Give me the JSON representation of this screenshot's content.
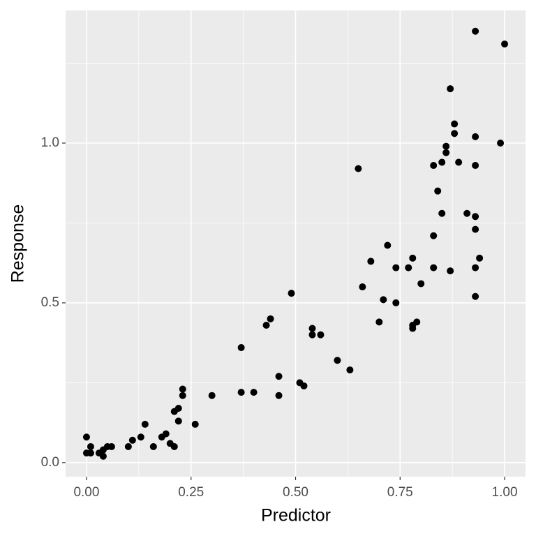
{
  "chart_data": {
    "type": "scatter",
    "x_label": "Predictor",
    "y_label": "Response",
    "x": [
      0,
      0,
      0.01,
      0.01,
      0.03,
      0.04,
      0.04,
      0.05,
      0.06,
      0.1,
      0.11,
      0.13,
      0.14,
      0.16,
      0.18,
      0.19,
      0.2,
      0.21,
      0.21,
      0.22,
      0.22,
      0.23,
      0.23,
      0.26,
      0.3,
      0.37,
      0.37,
      0.4,
      0.43,
      0.44,
      0.46,
      0.46,
      0.49,
      0.51,
      0.52,
      0.54,
      0.54,
      0.56,
      0.6,
      0.63,
      0.65,
      0.66,
      0.68,
      0.7,
      0.71,
      0.72,
      0.74,
      0.74,
      0.77,
      0.78,
      0.78,
      0.78,
      0.79,
      0.8,
      0.83,
      0.83,
      0.83,
      0.84,
      0.85,
      0.85,
      0.86,
      0.86,
      0.87,
      0.87,
      0.88,
      0.88,
      0.89,
      0.91,
      0.93,
      0.93,
      0.93,
      0.93,
      0.93,
      0.93,
      0.94,
      0.99,
      1.0,
      0.93
    ],
    "series": [
      {
        "color": "#000000",
        "values": [
          0.08,
          0.03,
          0.05,
          0.03,
          0.03,
          0.02,
          0.04,
          0.05,
          0.05,
          0.05,
          0.07,
          0.08,
          0.12,
          0.05,
          0.08,
          0.09,
          0.06,
          0.05,
          0.16,
          0.17,
          0.13,
          0.21,
          0.23,
          0.12,
          0.21,
          0.36,
          0.22,
          0.22,
          0.43,
          0.45,
          0.27,
          0.21,
          0.53,
          0.25,
          0.24,
          0.42,
          0.4,
          0.4,
          0.32,
          0.29,
          0.92,
          0.55,
          0.63,
          0.44,
          0.51,
          0.68,
          0.61,
          0.5,
          0.61,
          0.64,
          0.43,
          0.42,
          0.44,
          0.56,
          0.93,
          0.71,
          0.61,
          0.85,
          0.78,
          0.94,
          0.99,
          0.97,
          1.17,
          0.6,
          1.06,
          1.03,
          0.94,
          0.78,
          1.02,
          0.93,
          0.77,
          0.73,
          0.61,
          0.52,
          0.64,
          1.0,
          1.31,
          1.35
        ]
      }
    ],
    "xlim": [
      -0.05,
      1.05
    ],
    "ylim": [
      -0.044,
      1.415
    ],
    "xticks": [
      {
        "value": 0,
        "label": "0.00"
      },
      {
        "value": 0.25,
        "label": "0.25"
      },
      {
        "value": 0.5,
        "label": "0.50"
      },
      {
        "value": 0.75,
        "label": "0.75"
      },
      {
        "value": 1,
        "label": "1.00"
      }
    ],
    "yticks": [
      {
        "value": 0,
        "label": "0.0"
      },
      {
        "value": 0.5,
        "label": "0.5"
      },
      {
        "value": 1,
        "label": "1.0"
      }
    ],
    "grid": true
  }
}
